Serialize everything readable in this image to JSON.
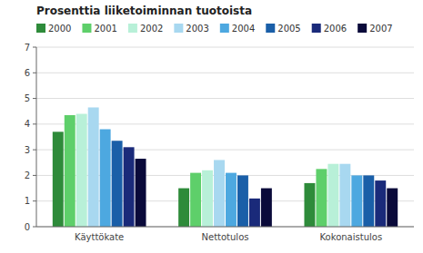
{
  "chart_data": {
    "type": "bar",
    "title": "Prosenttia liiketoiminnan tuotoista",
    "categories": [
      "Käyttökate",
      "Nettotulos",
      "Kokonaistulos"
    ],
    "series": [
      {
        "name": "2000",
        "color": "#2e8b3a",
        "values": [
          3.7,
          1.5,
          1.7
        ]
      },
      {
        "name": "2001",
        "color": "#5ecf6a",
        "values": [
          4.35,
          2.1,
          2.25
        ]
      },
      {
        "name": "2002",
        "color": "#b8f0d8",
        "values": [
          4.4,
          2.2,
          2.45
        ]
      },
      {
        "name": "2003",
        "color": "#a8d8f0",
        "values": [
          4.65,
          2.6,
          2.45
        ]
      },
      {
        "name": "2004",
        "color": "#4da8e0",
        "values": [
          3.8,
          2.1,
          2.0
        ]
      },
      {
        "name": "2005",
        "color": "#1a5fa8",
        "values": [
          3.35,
          2.0,
          2.0
        ]
      },
      {
        "name": "2006",
        "color": "#1a2a7a",
        "values": [
          3.1,
          1.1,
          1.8
        ]
      },
      {
        "name": "2007",
        "color": "#0a0a3a",
        "values": [
          2.65,
          1.5,
          1.5
        ]
      }
    ],
    "ylim": [
      0,
      7
    ],
    "yticks": [
      0,
      1,
      2,
      3,
      4,
      5,
      6,
      7
    ],
    "grid": true,
    "legend": "top"
  }
}
